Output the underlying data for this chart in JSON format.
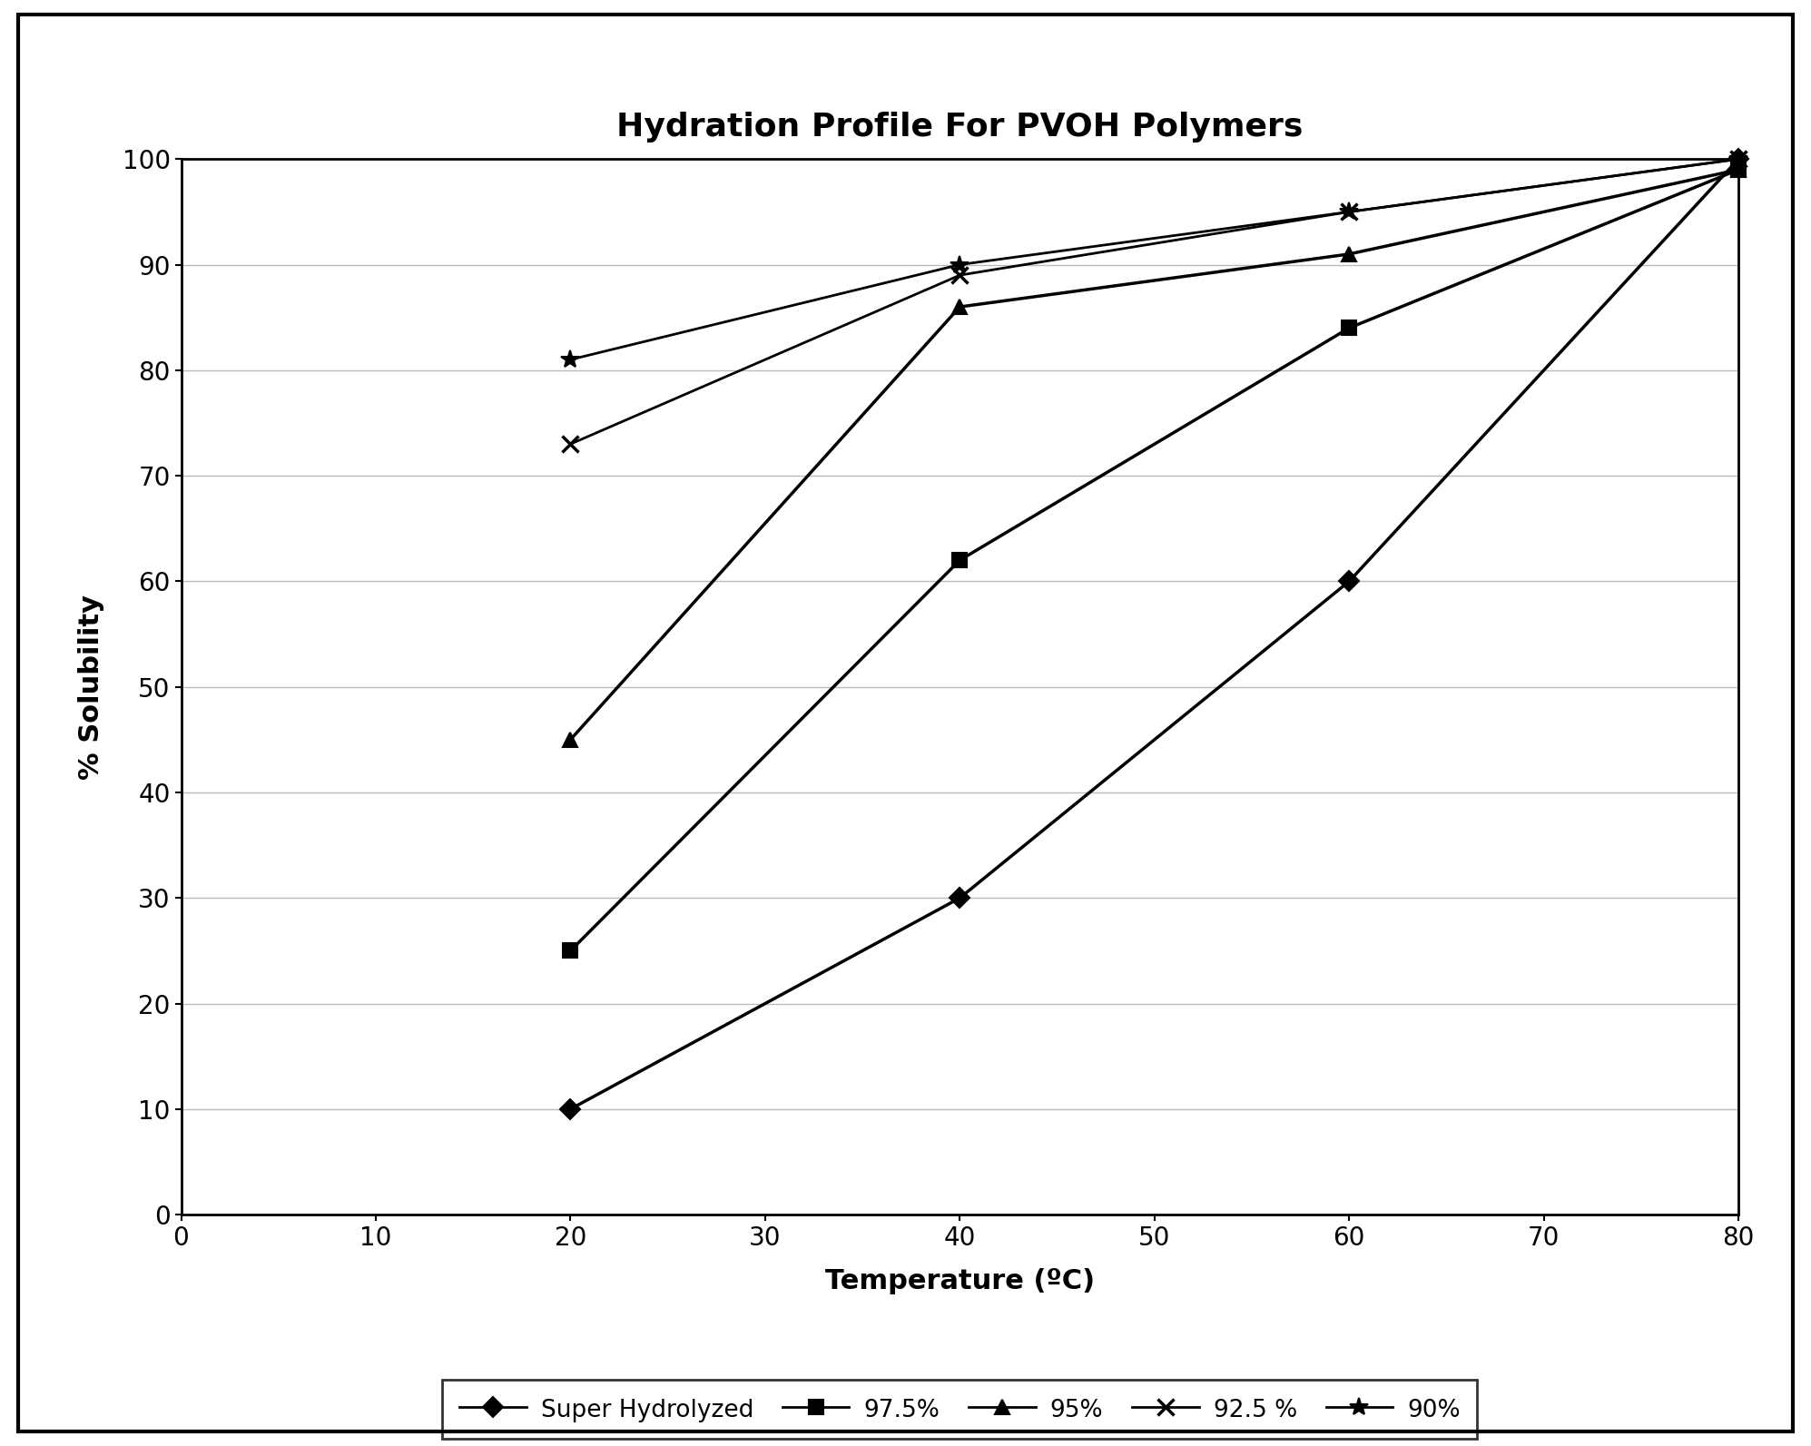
{
  "title": "Hydration Profile For PVOH Polymers",
  "xlabel": "Temperature (ºC)",
  "ylabel": "% Solubility",
  "xlim": [
    0,
    80
  ],
  "ylim": [
    0,
    100
  ],
  "xticks": [
    0,
    10,
    20,
    30,
    40,
    50,
    60,
    70,
    80
  ],
  "yticks": [
    0,
    10,
    20,
    30,
    40,
    50,
    60,
    70,
    80,
    90,
    100
  ],
  "series": [
    {
      "label": "Super Hydrolyzed",
      "x": [
        20,
        40,
        60,
        80
      ],
      "y": [
        10,
        30,
        60,
        100
      ],
      "color": "#000000",
      "marker": "D",
      "markersize": 11,
      "linewidth": 2.5
    },
    {
      "label": "97.5%",
      "x": [
        20,
        40,
        60,
        80
      ],
      "y": [
        25,
        62,
        84,
        99
      ],
      "color": "#000000",
      "marker": "s",
      "markersize": 11,
      "linewidth": 2.5
    },
    {
      "label": "95%",
      "x": [
        20,
        40,
        60,
        80
      ],
      "y": [
        45,
        86,
        91,
        99
      ],
      "color": "#000000",
      "marker": "^",
      "markersize": 11,
      "linewidth": 2.5
    },
    {
      "label": "92.5 %",
      "x": [
        20,
        40,
        60,
        80
      ],
      "y": [
        73,
        89,
        95,
        100
      ],
      "color": "#000000",
      "marker": "x",
      "markersize": 13,
      "linewidth": 2.0,
      "markeredgewidth": 2.5
    },
    {
      "label": "90%",
      "x": [
        20,
        40,
        60,
        80
      ],
      "y": [
        81,
        90,
        95,
        100
      ],
      "color": "#000000",
      "marker": "*",
      "markersize": 15,
      "linewidth": 2.0,
      "markeredgewidth": 1.5
    }
  ],
  "background_color": "#ffffff",
  "grid_color": "#bbbbbb",
  "title_fontsize": 26,
  "label_fontsize": 22,
  "tick_fontsize": 20,
  "legend_fontsize": 19
}
